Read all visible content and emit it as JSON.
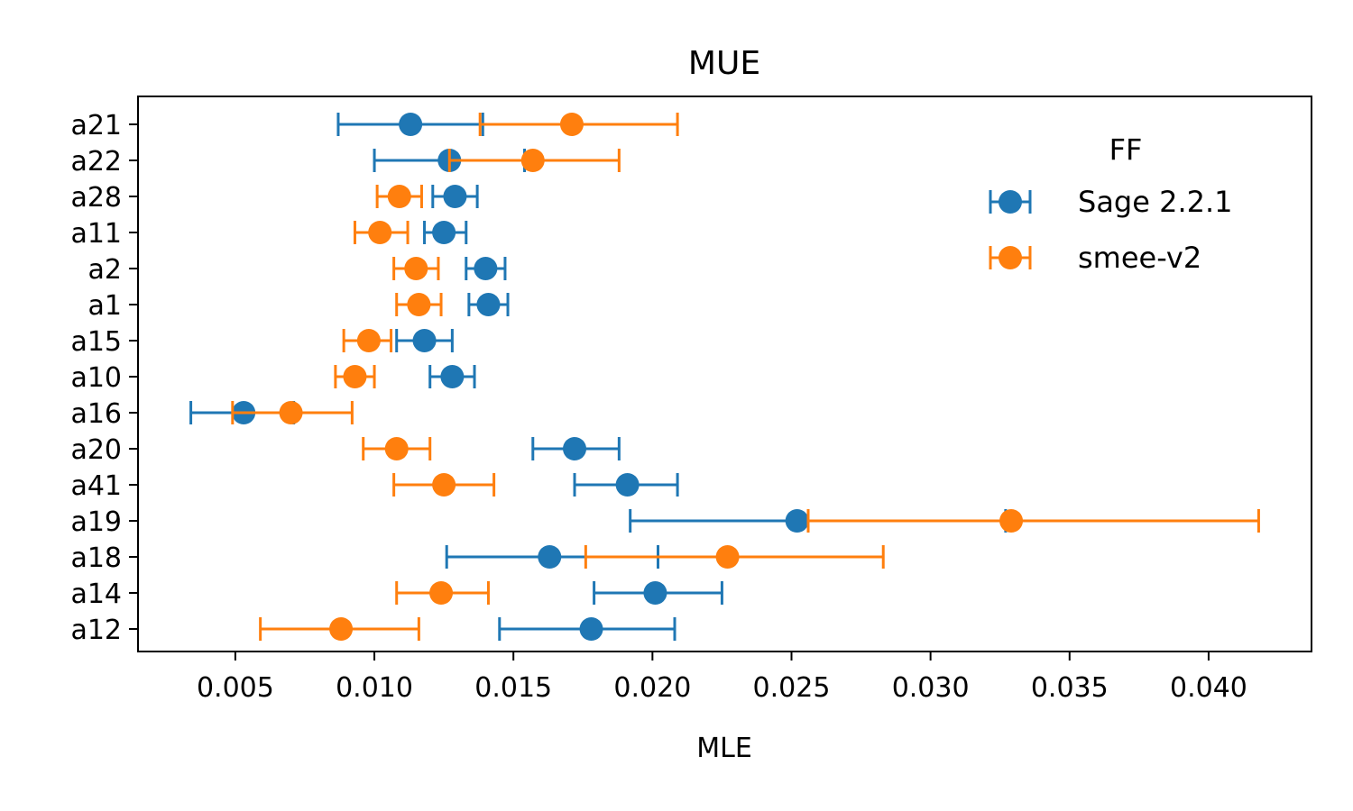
{
  "chart_data": {
    "type": "scatter",
    "title": "MUE",
    "xlabel": "MLE",
    "ylabel": "",
    "xlim": [
      0.0015,
      0.0437
    ],
    "xticks": [
      "0.005",
      "0.010",
      "0.015",
      "0.020",
      "0.025",
      "0.030",
      "0.035",
      "0.040"
    ],
    "xtick_values": [
      0.005,
      0.01,
      0.015,
      0.02,
      0.025,
      0.03,
      0.035,
      0.04
    ],
    "categories": [
      "a21",
      "a22",
      "a28",
      "a11",
      "a2",
      "a1",
      "a15",
      "a10",
      "a16",
      "a20",
      "a41",
      "a19",
      "a18",
      "a14",
      "a12"
    ],
    "legend": {
      "title": "FF",
      "position": "upper right"
    },
    "grid": false,
    "series": [
      {
        "name": "Sage 2.2.1",
        "color": "#1f77b4",
        "values": [
          0.0113,
          0.0127,
          0.0129,
          0.0125,
          0.014,
          0.0141,
          0.0118,
          0.0128,
          0.0053,
          0.0172,
          0.0191,
          0.0252,
          0.0163,
          0.0201,
          0.0178
        ],
        "lower": [
          0.0087,
          0.01,
          0.0121,
          0.0118,
          0.0133,
          0.0134,
          0.0108,
          0.012,
          0.0034,
          0.0157,
          0.0172,
          0.0192,
          0.0126,
          0.0179,
          0.0145
        ],
        "upper": [
          0.0139,
          0.0154,
          0.0137,
          0.0133,
          0.0147,
          0.0148,
          0.0128,
          0.0136,
          0.0071,
          0.0188,
          0.0209,
          0.0327,
          0.0202,
          0.0225,
          0.0208
        ]
      },
      {
        "name": "smee-v2",
        "color": "#ff7f0e",
        "values": [
          0.0171,
          0.0157,
          0.0109,
          0.0102,
          0.0115,
          0.0116,
          0.0098,
          0.0093,
          0.007,
          0.0108,
          0.0125,
          0.0329,
          0.0227,
          0.0124,
          0.0088
        ],
        "lower": [
          0.0138,
          0.0127,
          0.0101,
          0.0093,
          0.0107,
          0.0108,
          0.0089,
          0.0086,
          0.0049,
          0.0096,
          0.0107,
          0.0256,
          0.0176,
          0.0108,
          0.0059
        ],
        "upper": [
          0.0209,
          0.0188,
          0.0117,
          0.0112,
          0.0123,
          0.0124,
          0.0106,
          0.01,
          0.0092,
          0.012,
          0.0143,
          0.0418,
          0.0283,
          0.0141,
          0.0116
        ]
      }
    ]
  }
}
